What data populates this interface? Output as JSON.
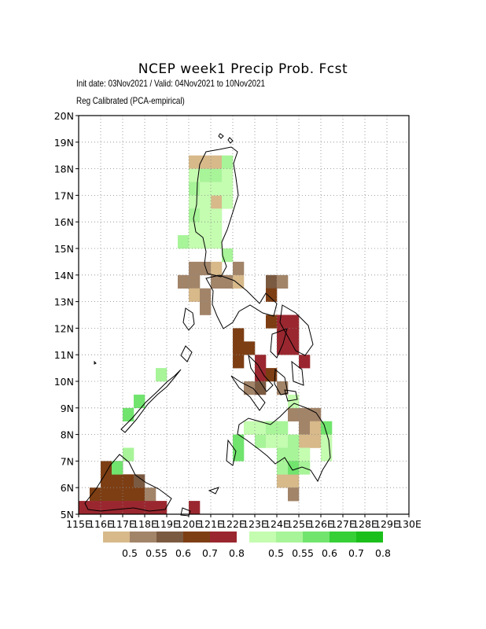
{
  "header": {
    "title": "NCEP week1 Precip Prob. Fcst",
    "init_line": "Init date: 03Nov2021 / Valid: 04Nov2021 to 10Nov2021",
    "method_line": "Reg Calibrated (PCA-empirical)"
  },
  "map": {
    "lon_ticks": [
      "115E",
      "116E",
      "117E",
      "118E",
      "119E",
      "120E",
      "121E",
      "122E",
      "123E",
      "124E",
      "125E",
      "126E",
      "127E",
      "128E",
      "129E",
      "130E"
    ],
    "lat_ticks": [
      "5N",
      "6N",
      "7N",
      "8N",
      "9N",
      "10N",
      "11N",
      "12N",
      "13N",
      "14N",
      "15N",
      "16N",
      "17N",
      "18N",
      "19N",
      "20N"
    ],
    "lon_range": [
      115,
      130
    ],
    "lat_range": [
      5,
      20
    ],
    "grid_cell_deg": 0.5,
    "gridlines": "dotted",
    "dry_cells": [
      [
        120,
        18,
        1
      ],
      [
        120.5,
        18,
        1
      ],
      [
        121,
        18,
        1
      ],
      [
        121,
        16.5,
        1
      ],
      [
        120,
        14,
        2
      ],
      [
        120.5,
        14,
        2
      ],
      [
        121,
        14,
        1
      ],
      [
        122,
        14,
        2
      ],
      [
        119.5,
        13.5,
        2
      ],
      [
        120,
        13.5,
        2
      ],
      [
        121,
        13.5,
        2
      ],
      [
        121.5,
        13.5,
        2
      ],
      [
        122,
        13.5,
        1
      ],
      [
        123.5,
        13.5,
        3
      ],
      [
        124,
        13.5,
        2
      ],
      [
        120,
        13,
        1
      ],
      [
        120.5,
        13,
        2
      ],
      [
        123.5,
        13,
        4
      ],
      [
        120.5,
        12.5,
        2
      ],
      [
        123.5,
        12,
        4
      ],
      [
        124,
        12,
        5
      ],
      [
        124.5,
        12,
        5
      ],
      [
        122,
        11.5,
        4
      ],
      [
        124,
        11.5,
        5
      ],
      [
        124.5,
        11.5,
        5
      ],
      [
        122,
        11,
        4
      ],
      [
        122.5,
        11,
        4
      ],
      [
        124,
        11,
        5
      ],
      [
        124.5,
        11,
        5
      ],
      [
        122,
        10.5,
        4
      ],
      [
        123,
        10.5,
        5
      ],
      [
        125,
        10.5,
        5
      ],
      [
        123,
        10,
        5
      ],
      [
        123.5,
        10,
        4
      ],
      [
        122.5,
        9.5,
        2
      ],
      [
        123,
        9.5,
        3
      ],
      [
        124,
        9.5,
        2
      ],
      [
        124.5,
        8.5,
        2
      ],
      [
        125,
        8.5,
        2
      ],
      [
        125.5,
        8.5,
        2
      ],
      [
        125,
        8,
        2
      ],
      [
        125.5,
        8,
        1
      ],
      [
        125,
        7.5,
        1
      ],
      [
        125.5,
        7.5,
        1
      ],
      [
        124,
        6,
        1
      ],
      [
        124.5,
        6,
        1
      ],
      [
        124.5,
        5.5,
        2
      ],
      [
        116,
        6.5,
        4
      ],
      [
        116.5,
        6.5,
        4
      ],
      [
        116,
        6,
        4
      ],
      [
        116.5,
        6,
        4
      ],
      [
        117,
        6,
        4
      ],
      [
        117.5,
        6,
        3
      ],
      [
        115.5,
        5.5,
        4
      ],
      [
        116,
        5.5,
        4
      ],
      [
        116.5,
        5.5,
        4
      ],
      [
        117,
        5.5,
        4
      ],
      [
        117.5,
        5.5,
        4
      ],
      [
        118,
        5.5,
        2
      ],
      [
        115,
        5,
        5
      ],
      [
        115.5,
        5,
        5
      ],
      [
        116,
        5,
        5
      ],
      [
        116.5,
        5,
        5
      ],
      [
        117,
        5,
        5
      ],
      [
        117.5,
        5,
        5
      ],
      [
        118,
        5,
        5
      ],
      [
        118.5,
        5,
        5
      ],
      [
        120,
        5,
        5
      ]
    ],
    "wet_cells": [
      [
        121.5,
        18,
        2
      ],
      [
        120,
        17.5,
        1
      ],
      [
        120.5,
        17.5,
        2
      ],
      [
        121,
        17.5,
        2
      ],
      [
        121.5,
        17.5,
        1
      ],
      [
        120,
        17,
        2
      ],
      [
        120.5,
        17,
        1
      ],
      [
        121,
        17,
        1
      ],
      [
        121.5,
        17,
        1
      ],
      [
        120,
        16.5,
        1
      ],
      [
        120.5,
        16.5,
        1
      ],
      [
        121.5,
        16.5,
        1
      ],
      [
        120,
        16,
        2
      ],
      [
        120.5,
        16,
        1
      ],
      [
        121,
        16,
        1
      ],
      [
        120,
        15.5,
        1
      ],
      [
        120.5,
        15.5,
        1
      ],
      [
        121,
        15.5,
        1
      ],
      [
        119.5,
        15,
        2
      ],
      [
        120,
        15,
        1
      ],
      [
        120.5,
        15,
        1
      ],
      [
        121,
        15,
        1
      ],
      [
        121.5,
        14.5,
        2
      ],
      [
        118.5,
        10,
        2
      ],
      [
        117.5,
        9,
        3
      ],
      [
        117,
        8.5,
        3
      ],
      [
        117,
        7,
        2
      ],
      [
        116.5,
        6.5,
        3
      ],
      [
        124.5,
        9,
        1
      ],
      [
        122.5,
        8,
        1
      ],
      [
        123,
        8,
        1
      ],
      [
        123.5,
        8,
        2
      ],
      [
        124,
        8,
        2
      ],
      [
        126,
        8,
        3
      ],
      [
        122,
        7.5,
        3
      ],
      [
        123,
        7.5,
        2
      ],
      [
        123.5,
        7.5,
        1
      ],
      [
        124,
        7.5,
        1
      ],
      [
        124.5,
        7.5,
        2
      ],
      [
        126,
        7.5,
        1
      ],
      [
        122,
        7,
        3
      ],
      [
        124,
        7,
        2
      ],
      [
        124.5,
        7,
        2
      ],
      [
        125,
        7,
        1
      ],
      [
        126,
        7,
        1
      ],
      [
        124,
        6.5,
        2
      ],
      [
        124.5,
        6.5,
        3
      ],
      [
        125,
        6.5,
        2
      ]
    ]
  },
  "legend": {
    "dry_colors": [
      "#d7b98a",
      "#a28469",
      "#7b5a42",
      "#7d3e14",
      "#9a272f"
    ],
    "wet_colors": [
      "#c4fcb0",
      "#a8f499",
      "#71e46e",
      "#36cf36",
      "#1bbf1b"
    ],
    "labels": [
      "0.5",
      "0.55",
      "0.6",
      "0.7",
      "0.8"
    ]
  }
}
